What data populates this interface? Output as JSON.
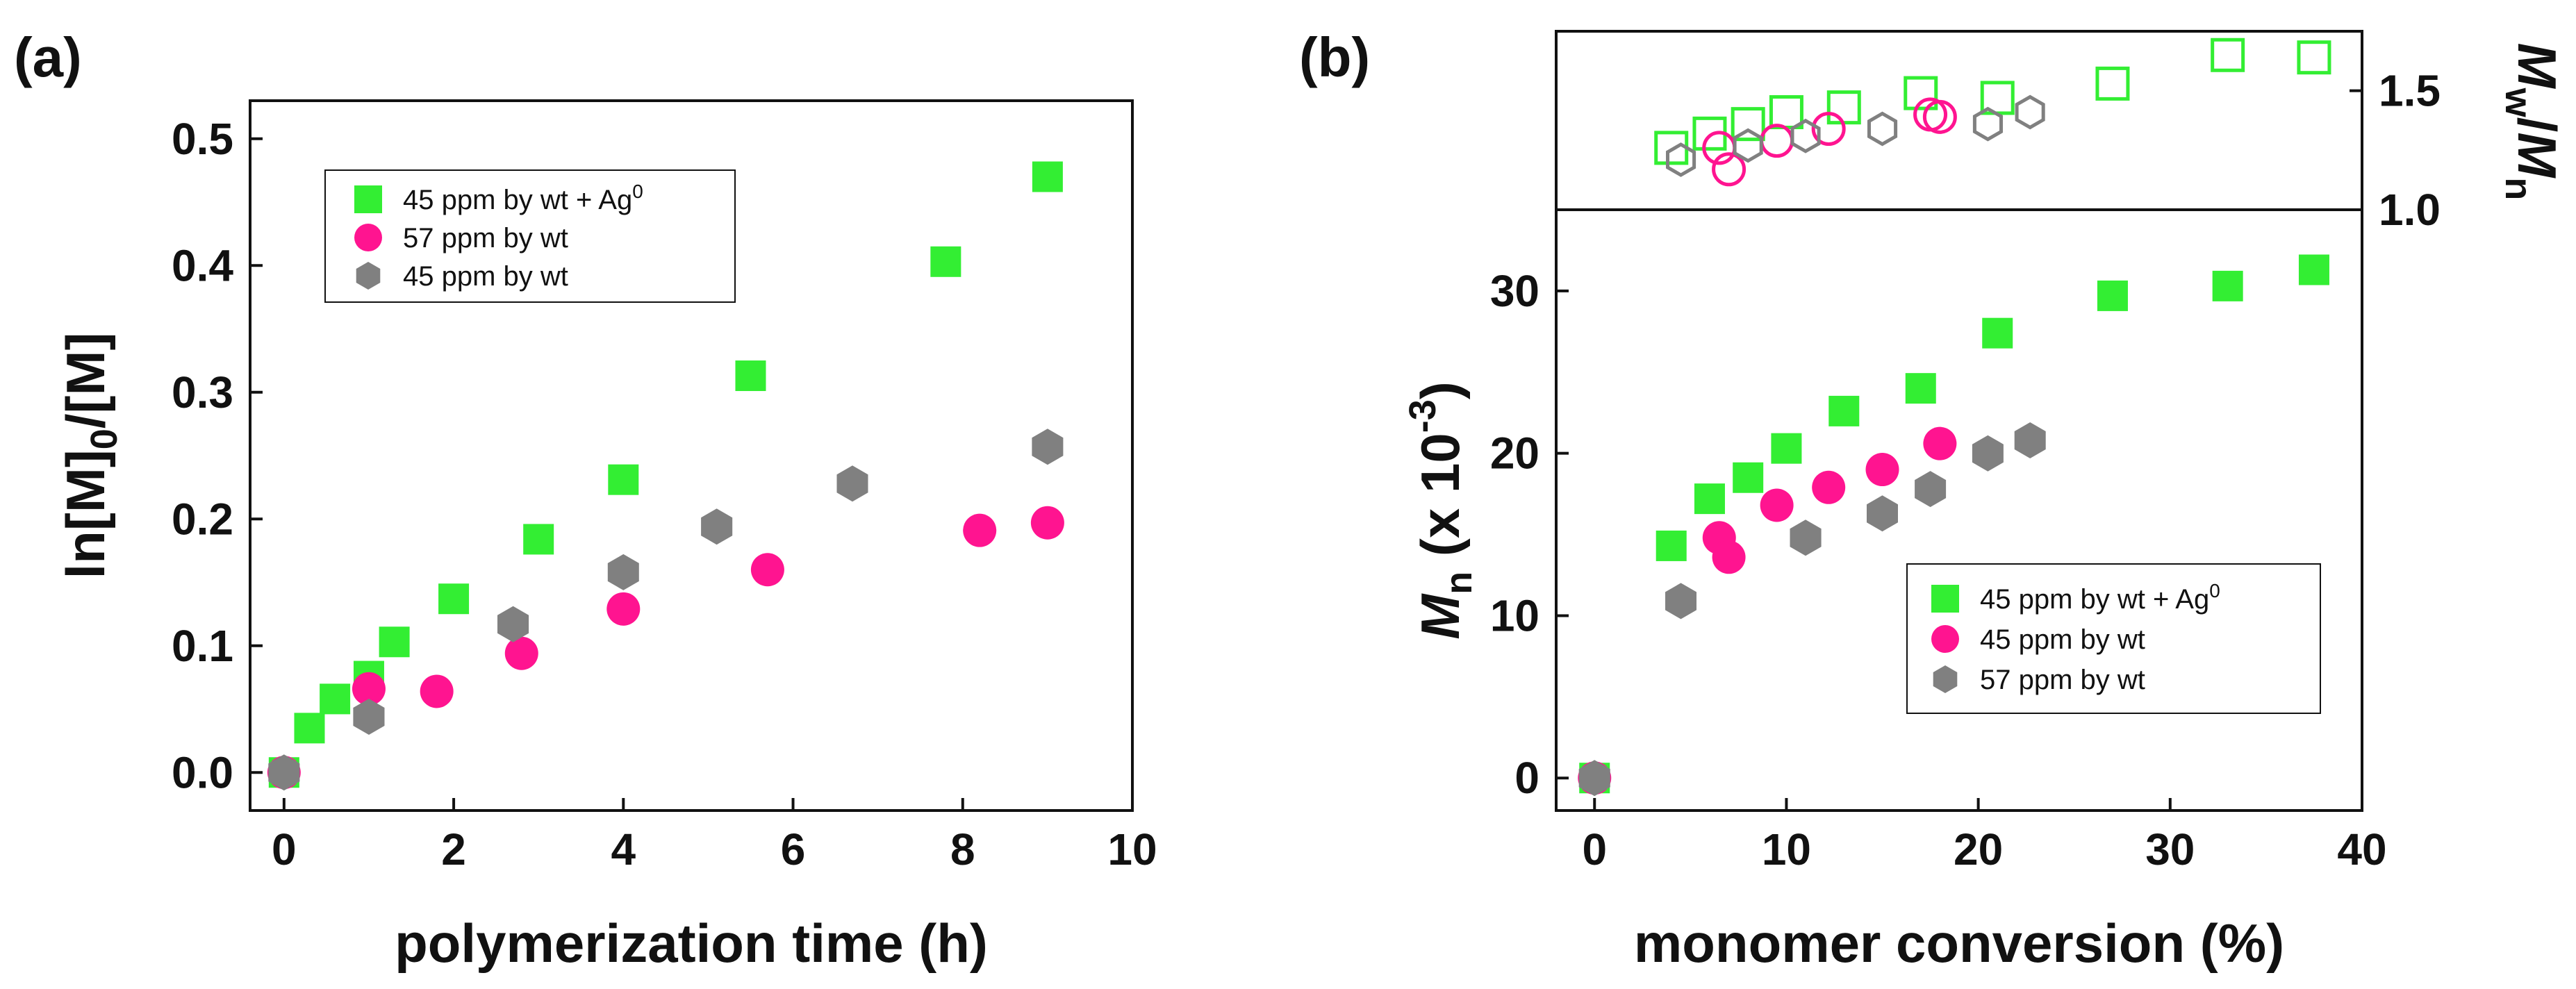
{
  "chart_data": [
    {
      "panel": "a",
      "panel_label": "(a)",
      "type": "scatter",
      "xlabel": "polymerization time (h)",
      "ylabel": "ln[M]0/[M]",
      "ylabel_parts": {
        "main": "ln[M]",
        "sub": "0",
        "rest": "/[M]"
      },
      "xlim": [
        -0.4,
        10
      ],
      "ylim": [
        -0.03,
        0.53
      ],
      "xticks": [
        0,
        2,
        4,
        6,
        8,
        10
      ],
      "xtick_labels": [
        "0",
        "2",
        "4",
        "6",
        "8",
        "10"
      ],
      "yticks": [
        0.0,
        0.1,
        0.2,
        0.3,
        0.4,
        0.5
      ],
      "ytick_labels": [
        "0.0",
        "0.1",
        "0.2",
        "0.3",
        "0.4",
        "0.5"
      ],
      "grid": false,
      "legend_position": "top-left",
      "series": [
        {
          "name": "45 ppm by wt + Ag0",
          "label": {
            "main": "45 ppm by wt + Ag",
            "sup": "0"
          },
          "marker": "square",
          "color": "#33ee33",
          "x": [
            0.0,
            0.3,
            0.6,
            1.0,
            1.3,
            2.0,
            3.0,
            4.0,
            5.5,
            7.8,
            9.0
          ],
          "y": [
            0.0,
            0.035,
            0.058,
            0.076,
            0.103,
            0.137,
            0.184,
            0.231,
            0.313,
            0.403,
            0.47
          ]
        },
        {
          "name": "57 ppm by wt",
          "label": {
            "main": "57 ppm by wt",
            "sup": ""
          },
          "marker": "circle",
          "color": "#ff1490",
          "x": [
            0.0,
            1.0,
            1.8,
            2.8,
            4.0,
            5.7,
            8.2,
            9.0
          ],
          "y": [
            0.0,
            0.066,
            0.064,
            0.094,
            0.129,
            0.16,
            0.191,
            0.197
          ]
        },
        {
          "name": "45 ppm by wt",
          "label": {
            "main": "45 ppm by wt",
            "sup": ""
          },
          "marker": "hexagon",
          "color": "#808080",
          "x": [
            0.0,
            1.0,
            2.7,
            4.0,
            5.1,
            6.7,
            9.0
          ],
          "y": [
            0.0,
            0.044,
            0.117,
            0.158,
            0.194,
            0.228,
            0.257
          ]
        }
      ]
    },
    {
      "panel": "b",
      "panel_label": "(b)",
      "type": "scatter",
      "xlabel": "monomer conversion (%)",
      "xlim": [
        -2,
        40
      ],
      "xticks": [
        0,
        10,
        20,
        30,
        40
      ],
      "xtick_labels": [
        "0",
        "10",
        "20",
        "30",
        "40"
      ],
      "grid": false,
      "top": {
        "ylabel": "Mw/Mn",
        "ylabel_parts": {
          "a": "M",
          "asub": "w",
          "slash": "/",
          "b": "M",
          "bsub": "n"
        },
        "ylim": [
          1.0,
          1.75
        ],
        "yticks": [
          1.0,
          1.5
        ],
        "ytick_labels": [
          "1.0",
          "1.5"
        ],
        "series": [
          {
            "name": "45 ppm by wt + Ag0",
            "marker": "open-square",
            "color": "#33ee33",
            "x": [
              4.0,
              6.0,
              8.0,
              10.0,
              13.0,
              17.0,
              21.0,
              27.0,
              33.0,
              37.5
            ],
            "y": [
              1.26,
              1.32,
              1.36,
              1.41,
              1.43,
              1.49,
              1.47,
              1.53,
              1.65,
              1.64
            ]
          },
          {
            "name": "45 ppm by wt",
            "marker": "open-circle",
            "color": "#ff1490",
            "x": [
              6.5,
              7.0,
              9.5,
              12.2,
              17.5,
              18.0
            ],
            "y": [
              1.26,
              1.17,
              1.29,
              1.34,
              1.4,
              1.39
            ]
          },
          {
            "name": "57 ppm by wt",
            "marker": "open-hexagon",
            "color": "#808080",
            "x": [
              4.5,
              8.0,
              11.0,
              15.0,
              20.5,
              22.7
            ],
            "y": [
              1.21,
              1.27,
              1.31,
              1.34,
              1.36,
              1.41
            ]
          }
        ]
      },
      "bottom": {
        "ylabel": "Mn (x 10-3)",
        "ylabel_parts": {
          "a": "M",
          "asub": "n",
          "rest": " (x 10",
          "sup": "-3",
          "close": ")"
        },
        "ylim": [
          -2,
          35
        ],
        "yticks": [
          0,
          10,
          20,
          30
        ],
        "ytick_labels": [
          "0",
          "10",
          "20",
          "30"
        ],
        "legend_position": "bottom-right",
        "series": [
          {
            "name": "45 ppm by wt + Ag0",
            "label": {
              "main": "45 ppm by wt + Ag",
              "sup": "0"
            },
            "marker": "square",
            "color": "#33ee33",
            "x": [
              0.0,
              4.0,
              6.0,
              8.0,
              10.0,
              13.0,
              17.0,
              21.0,
              27.0,
              33.0,
              37.5
            ],
            "y": [
              0.0,
              14.3,
              17.2,
              18.5,
              20.3,
              22.6,
              24.0,
              27.4,
              29.7,
              30.3,
              31.3
            ]
          },
          {
            "name": "45 ppm by wt",
            "label": {
              "main": "45 ppm by wt",
              "sup": ""
            },
            "marker": "circle",
            "color": "#ff1490",
            "x": [
              0.0,
              6.5,
              7.0,
              9.5,
              12.2,
              15.0,
              18.0
            ],
            "y": [
              0.0,
              14.8,
              13.6,
              16.8,
              17.9,
              19.0,
              20.6
            ]
          },
          {
            "name": "57 ppm by wt",
            "label": {
              "main": "57 ppm by wt",
              "sup": ""
            },
            "marker": "hexagon",
            "color": "#808080",
            "x": [
              0.0,
              4.5,
              11.0,
              15.0,
              17.5,
              20.5,
              22.7
            ],
            "y": [
              0.0,
              10.9,
              14.8,
              16.3,
              17.8,
              20.0,
              20.8
            ]
          }
        ]
      }
    }
  ]
}
